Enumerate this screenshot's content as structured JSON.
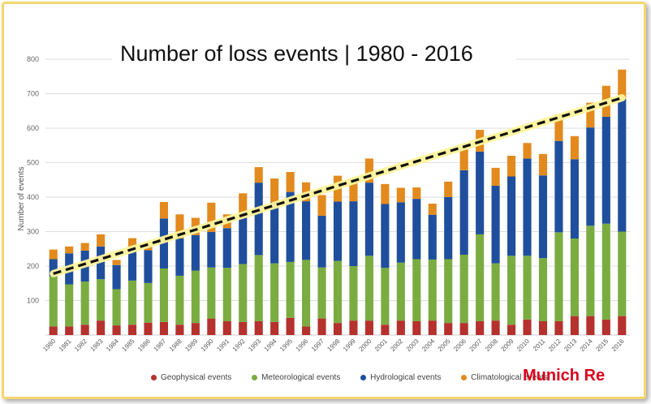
{
  "chart_data": {
    "type": "bar",
    "stacked": true,
    "title": "Number of loss events | 1980 - 2016",
    "ylabel": "Number of events",
    "xlabel": "",
    "ylim": [
      0,
      800
    ],
    "yticks": [
      100,
      200,
      300,
      400,
      500,
      600,
      700,
      800
    ],
    "grid": true,
    "legend_position": "bottom",
    "categories": [
      "1980",
      "1981",
      "1982",
      "1983",
      "1984",
      "1985",
      "1986",
      "1987",
      "1988",
      "1989",
      "1990",
      "1991",
      "1992",
      "1993",
      "1994",
      "1995",
      "1996",
      "1997",
      "1998",
      "1999",
      "2000",
      "2001",
      "2002",
      "2003",
      "2004",
      "2005",
      "2006",
      "2007",
      "2008",
      "2009",
      "2010",
      "2011",
      "2012",
      "2013",
      "2014",
      "2015",
      "2016"
    ],
    "series": [
      {
        "name": "Geophysical events",
        "color": "#b5312e",
        "values": [
          25,
          25,
          30,
          42,
          28,
          30,
          36,
          38,
          30,
          35,
          48,
          40,
          38,
          40,
          38,
          50,
          25,
          48,
          35,
          42,
          42,
          30,
          42,
          40,
          42,
          35,
          35,
          40,
          42,
          30,
          45,
          40,
          40,
          55,
          55,
          45,
          55
        ]
      },
      {
        "name": "Meteorological events",
        "color": "#7bac42",
        "values": [
          145,
          122,
          125,
          120,
          105,
          128,
          115,
          155,
          142,
          152,
          148,
          155,
          168,
          192,
          170,
          162,
          193,
          148,
          180,
          158,
          188,
          165,
          168,
          180,
          177,
          185,
          198,
          252,
          166,
          200,
          185,
          183,
          258,
          225,
          262,
          278,
          245
        ]
      },
      {
        "name": "Hydrological events",
        "color": "#1f4f9c",
        "values": [
          50,
          90,
          90,
          95,
          70,
          95,
          95,
          145,
          108,
          103,
          103,
          115,
          135,
          210,
          178,
          203,
          170,
          150,
          172,
          188,
          212,
          185,
          175,
          175,
          130,
          180,
          245,
          240,
          225,
          230,
          282,
          240,
          265,
          230,
          285,
          310,
          385
        ]
      },
      {
        "name": "Climatological events",
        "color": "#e28a1e",
        "values": [
          28,
          20,
          22,
          35,
          15,
          28,
          24,
          48,
          70,
          50,
          85,
          40,
          70,
          45,
          68,
          58,
          55,
          60,
          75,
          62,
          70,
          58,
          42,
          33,
          32,
          45,
          66,
          63,
          52,
          60,
          45,
          62,
          77,
          67,
          72,
          90,
          85
        ]
      }
    ],
    "trendline": {
      "start": [
        1980,
        178
      ],
      "end": [
        2016,
        688
      ],
      "style": "dashed"
    }
  },
  "brand": "Munich Re"
}
